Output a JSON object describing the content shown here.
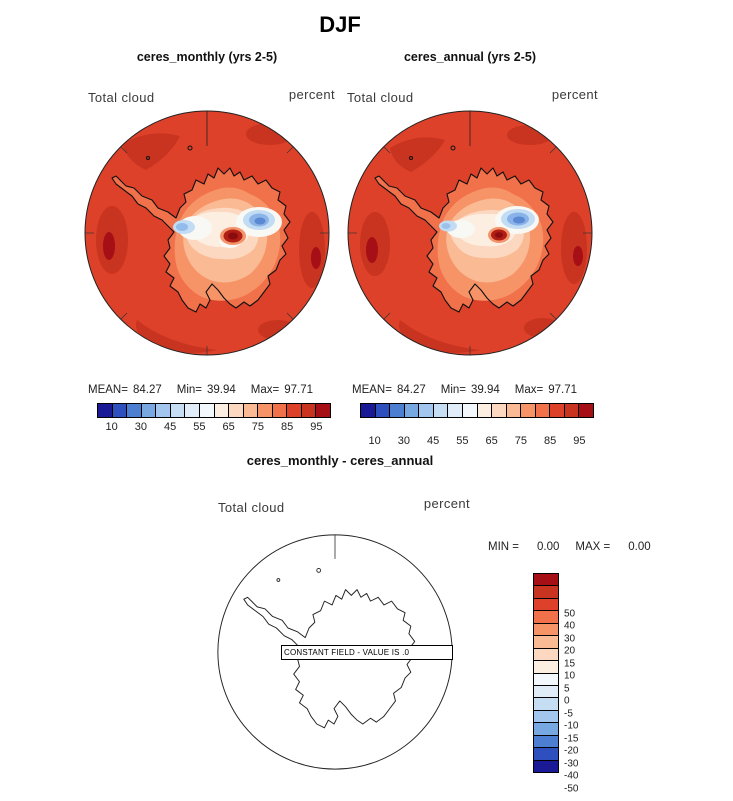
{
  "page": {
    "title": "DJF"
  },
  "panel_left": {
    "title": "ceres_monthly (yrs 2-5)",
    "field": "Total cloud",
    "units": "percent",
    "stats": {
      "mean_label": "MEAN=",
      "mean": "84.27",
      "min_label": "Min=",
      "min": "39.94",
      "max_label": "Max=",
      "max": "97.71"
    }
  },
  "panel_right": {
    "title": "ceres_annual (yrs 2-5)",
    "field": "Total cloud",
    "units": "percent",
    "stats": {
      "mean_label": "MEAN=",
      "mean": "84.27",
      "min_label": "Min=",
      "min": "39.94",
      "max_label": "Max=",
      "max": "97.71"
    }
  },
  "panel_diff": {
    "title": "ceres_monthly - ceres_annual",
    "field": "Total cloud",
    "units": "percent",
    "minmax": {
      "min_label": "MIN =",
      "min": "0.00",
      "max_label": "MAX =",
      "max": "0.00"
    },
    "constant_note": "CONSTANT FIELD - VALUE IS .0"
  },
  "colorbar": {
    "colors": [
      "#1a1a96",
      "#2e4fbe",
      "#4c7fd2",
      "#78a8e2",
      "#a2c6ee",
      "#c6def4",
      "#e0edf9",
      "#f3f8fc",
      "#fdeee2",
      "#fcd8c0",
      "#f9ba94",
      "#f69468",
      "#f0714a",
      "#dd4129",
      "#c83420",
      "#a50f15"
    ],
    "ticks": [
      "10",
      "30",
      "45",
      "55",
      "65",
      "75",
      "85",
      "95"
    ]
  },
  "diff_colorbar": {
    "colors": [
      "#a50f15",
      "#c83420",
      "#dd4129",
      "#f0714a",
      "#f69468",
      "#f9ba94",
      "#fcd8c0",
      "#fdeee2",
      "#f3f8fc",
      "#e0edf9",
      "#c6def4",
      "#a2c6ee",
      "#78a8e2",
      "#4c7fd2",
      "#2e4fbe",
      "#1a1a96"
    ],
    "ticks": [
      "50",
      "40",
      "30",
      "20",
      "15",
      "10",
      "5",
      "0",
      "-5",
      "-10",
      "-15",
      "-20",
      "-30",
      "-40",
      "-50"
    ]
  },
  "chart_data": [
    {
      "type": "heatmap",
      "subtype": "polar_stereographic_map",
      "season": "DJF",
      "title": "ceres_monthly (yrs 2-5)",
      "variable": "Total cloud",
      "units": "percent",
      "region": "Antarctica / South Polar cap",
      "stats": {
        "mean": 84.27,
        "min": 39.94,
        "max": 97.71
      },
      "contour_levels": [
        10,
        30,
        45,
        55,
        65,
        75,
        85,
        95
      ],
      "palette": "blue-white-red",
      "legend_position": "bottom"
    },
    {
      "type": "heatmap",
      "subtype": "polar_stereographic_map",
      "season": "DJF",
      "title": "ceres_annual (yrs 2-5)",
      "variable": "Total cloud",
      "units": "percent",
      "region": "Antarctica / South Polar cap",
      "stats": {
        "mean": 84.27,
        "min": 39.94,
        "max": 97.71
      },
      "contour_levels": [
        10,
        30,
        45,
        55,
        65,
        75,
        85,
        95
      ],
      "palette": "blue-white-red",
      "legend_position": "bottom"
    },
    {
      "type": "heatmap",
      "subtype": "polar_stereographic_map",
      "season": "DJF",
      "title": "ceres_monthly - ceres_annual",
      "variable": "Total cloud",
      "units": "percent",
      "region": "Antarctica / South Polar cap",
      "stats": {
        "min": 0.0,
        "max": 0.0
      },
      "constant_field_value": 0.0,
      "contour_levels": [
        -50,
        -40,
        -30,
        -20,
        -15,
        -10,
        -5,
        0,
        5,
        10,
        15,
        20,
        30,
        40,
        50
      ],
      "palette": "red-white-blue",
      "legend_position": "right"
    }
  ]
}
